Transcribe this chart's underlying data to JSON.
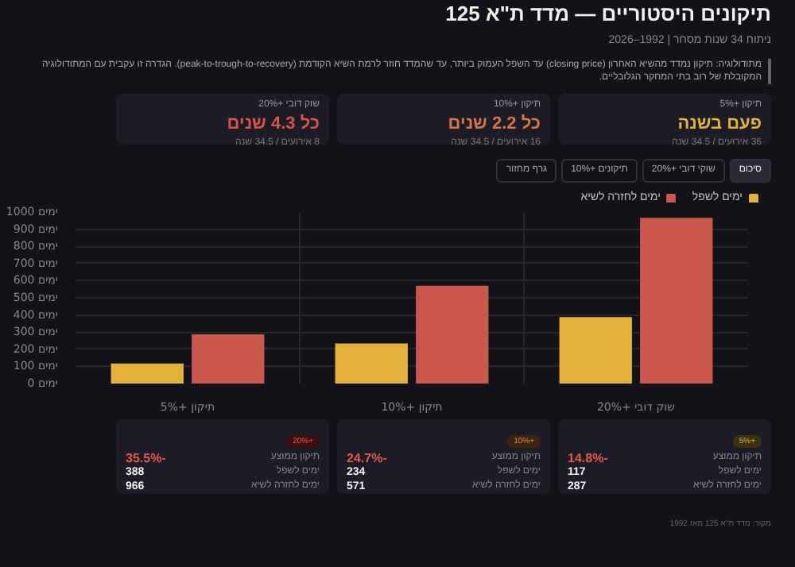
{
  "chart_data": {
    "type": "bar",
    "title": "תיקונים היסטוריים — מדד ת\"א 125",
    "subtitle": "ניתוח 34 שנות מסחר | 1992–2026",
    "categories": [
      "תיקון +5%",
      "תיקון +10%",
      "שוק דובי +20%"
    ],
    "series": [
      {
        "name": "ימים לשפל",
        "color": "#e3b23c",
        "values": [
          117,
          234,
          388
        ]
      },
      {
        "name": "ימים לחזרה לשיא",
        "color": "#c9584f",
        "values": [
          287,
          571,
          966
        ]
      }
    ],
    "ylim": [
      0,
      1000
    ],
    "yticks": [
      {
        "value": 0,
        "label": "0 ימים"
      },
      {
        "value": 100,
        "label": "100 ימים"
      },
      {
        "value": 200,
        "label": "200 ימים"
      },
      {
        "value": 300,
        "label": "300 ימים"
      },
      {
        "value": 400,
        "label": "400 ימים"
      },
      {
        "value": 500,
        "label": "500 ימים"
      },
      {
        "value": 600,
        "label": "600 ימים"
      },
      {
        "value": 700,
        "label": "700 ימים"
      },
      {
        "value": 800,
        "label": "800 ימים"
      },
      {
        "value": 900,
        "label": "900 ימים"
      },
      {
        "value": 1000,
        "label": "1000 ימים"
      }
    ],
    "grid": true,
    "legend": "top right",
    "annotations": [
      "מתודולוגיה: תיקון נמדד מהשיא האחרון (closing price) עד השפל העמוק ביותר, עד שהמדד חוזר לרמת השיא הקודמת (peak-to-trough-to-recovery). הגדרה זו עקבית עם המתודולוגיה המקובלת של רוב בתי המחקר הגלובליים.",
      "תיקון +5%",
      "פעם בשנה",
      "36 אירועים / 34.5 שנה",
      "תיקון +10%",
      "כל 2.2 שנים",
      "16 אירועים / 34.5 שנה",
      "שוק דובי +20%",
      "כל 4.3 שנים",
      "8 אירועים / 34.5 שנה",
      "סיכום",
      "שוקי דובי +20%",
      "תיקונים +10%",
      "גרף מחזור",
      "+5%",
      "תיקון ממוצע",
      "-14.8%",
      "ימים לשפל",
      "117",
      "ימים לחזרה לשיא",
      "287",
      "+10%",
      "תיקון ממוצע",
      "-24.7%",
      "ימים לשפל",
      "234",
      "ימים לחזרה לשיא",
      "571",
      "+20%",
      "תיקון ממוצע",
      "-35.5%",
      "ימים לשפל",
      "388",
      "ימים לחזרה לשיא",
      "966",
      "מקור: מדד ת\"א 125 מאז 1992"
    ]
  }
}
